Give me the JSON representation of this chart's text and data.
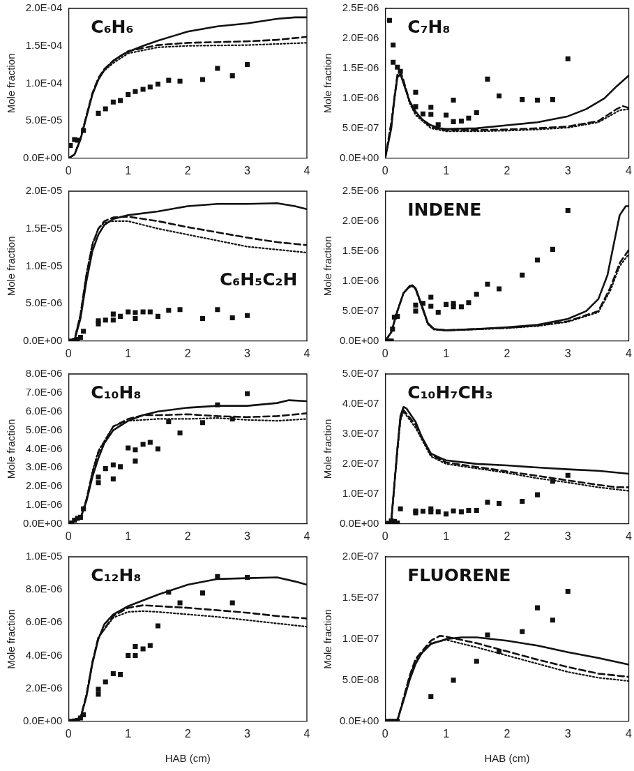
{
  "chart_data": [
    {
      "type": "scatter",
      "title": "C₆H₆",
      "ylabel": "Mole fraction",
      "xlim": [
        0,
        4
      ],
      "xticks": [
        0,
        1,
        2,
        3,
        4
      ],
      "ylim": [
        0,
        0.0002
      ],
      "yticks": [
        {
          "value": 0,
          "label": "0.0E+00"
        },
        {
          "value": 5e-05,
          "label": "5.0E-05"
        },
        {
          "value": 0.0001,
          "label": "1.0E-04"
        },
        {
          "value": 0.00015,
          "label": "1.5E-04"
        },
        {
          "value": 0.0002,
          "label": "2.0E-04"
        }
      ],
      "series": [
        {
          "type": "scatter",
          "marker": "square",
          "color": "#111111",
          "x": [
            0.03,
            0.1,
            0.15,
            0.25,
            0.5,
            0.62,
            0.75,
            0.87,
            1.0,
            1.12,
            1.25,
            1.37,
            1.5,
            1.68,
            1.87,
            2.25,
            2.5,
            2.75,
            3.0
          ],
          "values": [
            1.7e-05,
            2.5e-05,
            2.4e-05,
            3.7e-05,
            6e-05,
            6.6e-05,
            7.5e-05,
            7.7e-05,
            8.5e-05,
            8.9e-05,
            9.2e-05,
            9.5e-05,
            9.9e-05,
            0.000104,
            0.000103,
            0.000105,
            0.00012,
            0.00011,
            0.000125
          ]
        },
        {
          "type": "line",
          "line_style": "solid",
          "color": "#111111",
          "x": [
            0,
            0.1,
            0.2,
            0.3,
            0.4,
            0.5,
            0.6,
            0.75,
            0.9,
            1.0,
            1.25,
            1.5,
            2.0,
            2.5,
            3.0,
            3.5,
            3.8,
            4.0
          ],
          "values": [
            0,
            5e-06,
            2.5e-05,
            5.5e-05,
            8.5e-05,
            0.000105,
            0.000118,
            0.00013,
            0.000138,
            0.000142,
            0.00015,
            0.000157,
            0.000169,
            0.000176,
            0.00018,
            0.000186,
            0.000188,
            0.000188
          ]
        },
        {
          "type": "line",
          "line_style": "dashed",
          "color": "#111111",
          "x": [
            0,
            0.1,
            0.2,
            0.3,
            0.4,
            0.5,
            0.6,
            0.75,
            1.0,
            1.5,
            2.0,
            3.0,
            3.5,
            4.0
          ],
          "values": [
            0,
            5e-06,
            2.6e-05,
            5.7e-05,
            8.7e-05,
            0.000107,
            0.000119,
            0.00013,
            0.000143,
            0.000151,
            0.000154,
            0.000156,
            0.000158,
            0.000162
          ]
        },
        {
          "type": "line",
          "line_style": "dotted",
          "color": "#111111",
          "x": [
            0,
            0.1,
            0.2,
            0.3,
            0.4,
            0.5,
            0.6,
            0.75,
            1.0,
            1.5,
            2.0,
            3.0,
            4.0
          ],
          "values": [
            0,
            5e-06,
            2.6e-05,
            5.7e-05,
            8.6e-05,
            0.000105,
            0.000117,
            0.000127,
            0.00014,
            0.000148,
            0.00015,
            0.000151,
            0.000154
          ]
        }
      ]
    },
    {
      "type": "scatter",
      "title": "C₇H₈",
      "ylabel": "Mole fraction",
      "xlim": [
        0,
        4
      ],
      "xticks": [
        0,
        1,
        2,
        3,
        4
      ],
      "ylim": [
        0,
        2.5e-06
      ],
      "yticks": [
        {
          "value": 0,
          "label": "0.0E+00"
        },
        {
          "value": 5e-07,
          "label": "5.0E-07"
        },
        {
          "value": 1e-06,
          "label": "1.0E-06"
        },
        {
          "value": 1.5e-06,
          "label": "1.5E-06"
        },
        {
          "value": 2e-06,
          "label": "2.0E-06"
        },
        {
          "value": 2.5e-06,
          "label": "2.5E-06"
        }
      ],
      "series": [
        {
          "type": "scatter",
          "marker": "square",
          "color": "#111111",
          "x": [
            0.07,
            0.13,
            0.13,
            0.2,
            0.25,
            0.5,
            0.5,
            0.62,
            0.75,
            0.75,
            0.87,
            1.0,
            1.12,
            1.12,
            1.25,
            1.37,
            1.5,
            1.68,
            1.87,
            2.25,
            2.5,
            2.75,
            3.0
          ],
          "values": [
            2.3e-06,
            1.89e-06,
            1.6e-06,
            1.52e-06,
            1.45e-06,
            1.1e-06,
            8.6e-07,
            7.4e-07,
            8.5e-07,
            7.3e-07,
            5.6e-07,
            7.2e-07,
            9.7e-07,
            6.1e-07,
            6.2e-07,
            6.7e-07,
            7.6e-07,
            1.32e-06,
            1.04e-06,
            9.8e-07,
            9.7e-07,
            9.8e-07,
            1.66e-06
          ]
        },
        {
          "type": "line",
          "line_style": "solid",
          "color": "#111111",
          "x": [
            0,
            0.1,
            0.15,
            0.2,
            0.25,
            0.3,
            0.4,
            0.5,
            0.6,
            0.75,
            0.9,
            1.0,
            1.5,
            2.0,
            2.5,
            3.0,
            3.3,
            3.6,
            3.8,
            4.0
          ],
          "values": [
            0,
            5e-07,
            1e-06,
            1.35e-06,
            1.4e-06,
            1.25e-06,
            9.5e-07,
            7.8e-07,
            6.5e-07,
            5.5e-07,
            5e-07,
            4.9e-07,
            5e-07,
            5.5e-07,
            6e-07,
            7e-07,
            8.2e-07,
            1e-06,
            1.2e-06,
            1.38e-06
          ]
        },
        {
          "type": "line",
          "line_style": "dashed",
          "color": "#111111",
          "x": [
            0,
            0.1,
            0.2,
            0.25,
            0.3,
            0.4,
            0.5,
            0.75,
            1.0,
            1.5,
            2.0,
            2.5,
            3.0,
            3.5,
            3.8,
            3.9,
            4.0
          ],
          "values": [
            0,
            6e-07,
            1.4e-06,
            1.45e-06,
            1.3e-06,
            9.5e-07,
            7.5e-07,
            5.2e-07,
            4.7e-07,
            4.7e-07,
            4.8e-07,
            5e-07,
            5.3e-07,
            6.2e-07,
            8.2e-07,
            8.7e-07,
            8.4e-07
          ]
        },
        {
          "type": "line",
          "line_style": "dotted",
          "color": "#111111",
          "x": [
            0,
            0.1,
            0.2,
            0.25,
            0.3,
            0.4,
            0.5,
            0.75,
            1.0,
            1.5,
            2.0,
            2.5,
            3.0,
            3.5,
            3.85,
            4.0
          ],
          "values": [
            0,
            5.5e-07,
            1.35e-06,
            1.42e-06,
            1.28e-06,
            9.2e-07,
            7.2e-07,
            5e-07,
            4.5e-07,
            4.5e-07,
            4.6e-07,
            4.8e-07,
            5.1e-07,
            6e-07,
            8e-07,
            8.2e-07
          ]
        }
      ]
    },
    {
      "type": "scatter",
      "title": "C₆H₅C₂H",
      "ylabel": "Mole fraction",
      "xlim": [
        0,
        4
      ],
      "xticks": [
        0,
        1,
        2,
        3,
        4
      ],
      "ylim": [
        0,
        2e-05
      ],
      "yticks": [
        {
          "value": 0,
          "label": "0.0E+00"
        },
        {
          "value": 5e-06,
          "label": "5.0E-06"
        },
        {
          "value": 1e-05,
          "label": "1.0E-05"
        },
        {
          "value": 1.5e-05,
          "label": "1.5E-05"
        },
        {
          "value": 2e-05,
          "label": "2.0E-05"
        }
      ],
      "series": [
        {
          "type": "scatter",
          "marker": "square",
          "color": "#111111",
          "x": [
            0.05,
            0.1,
            0.15,
            0.2,
            0.25,
            0.5,
            0.5,
            0.62,
            0.75,
            0.75,
            0.87,
            1.0,
            1.12,
            1.12,
            1.25,
            1.37,
            1.5,
            1.68,
            1.87,
            2.25,
            2.5,
            2.75,
            3.0
          ],
          "values": [
            0,
            1e-07,
            2e-07,
            5e-07,
            1.3e-06,
            2.3e-06,
            2.7e-06,
            2.8e-06,
            3.6e-06,
            2.8e-06,
            3.3e-06,
            3.9e-06,
            3.8e-06,
            3e-06,
            3.9e-06,
            3.9e-06,
            3.3e-06,
            4.1e-06,
            4.2e-06,
            3e-06,
            4.2e-06,
            3.1e-06,
            3.4e-06
          ]
        },
        {
          "type": "line",
          "line_style": "solid",
          "color": "#111111",
          "x": [
            0,
            0.1,
            0.2,
            0.3,
            0.4,
            0.5,
            0.6,
            0.75,
            1.0,
            1.5,
            2.0,
            2.5,
            3.0,
            3.5,
            3.8,
            4.0
          ],
          "values": [
            0,
            1e-07,
            3e-06,
            8e-06,
            1.2e-05,
            1.42e-05,
            1.55e-05,
            1.63e-05,
            1.68e-05,
            1.73e-05,
            1.8e-05,
            1.83e-05,
            1.83e-05,
            1.84e-05,
            1.8e-05,
            1.76e-05
          ]
        },
        {
          "type": "line",
          "line_style": "dashed",
          "color": "#111111",
          "x": [
            0,
            0.1,
            0.2,
            0.3,
            0.4,
            0.5,
            0.6,
            0.75,
            1.0,
            1.5,
            2.0,
            2.5,
            3.0,
            3.5,
            4.0
          ],
          "values": [
            0,
            2e-07,
            3.5e-06,
            8.8e-06,
            1.28e-05,
            1.5e-05,
            1.6e-05,
            1.65e-05,
            1.66e-05,
            1.6e-05,
            1.52e-05,
            1.45e-05,
            1.38e-05,
            1.32e-05,
            1.28e-05
          ]
        },
        {
          "type": "line",
          "line_style": "dotted",
          "color": "#111111",
          "x": [
            0,
            0.1,
            0.2,
            0.3,
            0.4,
            0.5,
            0.6,
            0.75,
            1.0,
            1.5,
            2.0,
            2.5,
            3.0,
            3.5,
            4.0
          ],
          "values": [
            0,
            2e-07,
            3.6e-06,
            9e-06,
            1.3e-05,
            1.5e-05,
            1.58e-05,
            1.6e-05,
            1.6e-05,
            1.5e-05,
            1.42e-05,
            1.34e-05,
            1.26e-05,
            1.22e-05,
            1.18e-05
          ]
        }
      ]
    },
    {
      "type": "scatter",
      "title": "INDENE",
      "ylabel": "Mole fraction",
      "xlim": [
        0,
        4
      ],
      "xticks": [
        0,
        1,
        2,
        3,
        4
      ],
      "ylim": [
        0,
        2.5e-06
      ],
      "yticks": [
        {
          "value": 0,
          "label": "0.0E+00"
        },
        {
          "value": 5e-07,
          "label": "5.0E-07"
        },
        {
          "value": 1e-06,
          "label": "1.0E-06"
        },
        {
          "value": 1.5e-06,
          "label": "1.5E-06"
        },
        {
          "value": 2e-06,
          "label": "2.0E-06"
        },
        {
          "value": 2.5e-06,
          "label": "2.5E-06"
        }
      ],
      "series": [
        {
          "type": "scatter",
          "marker": "square",
          "color": "#111111",
          "x": [
            0.05,
            0.1,
            0.12,
            0.15,
            0.2,
            0.5,
            0.5,
            0.62,
            0.75,
            0.75,
            0.87,
            1.0,
            1.12,
            1.12,
            1.25,
            1.37,
            1.5,
            1.68,
            1.87,
            2.25,
            2.5,
            2.75,
            3.0
          ],
          "values": [
            0,
            0,
            2e-07,
            4e-07,
            4.1e-07,
            5e-07,
            6e-07,
            6.3e-07,
            7.3e-07,
            5.8e-07,
            4.8e-07,
            6.1e-07,
            6.3e-07,
            5.7e-07,
            5.7e-07,
            6.4e-07,
            7.8e-07,
            9.5e-07,
            8.7e-07,
            1.1e-06,
            1.35e-06,
            1.53e-06,
            2.18e-06
          ]
        },
        {
          "type": "line",
          "line_style": "solid",
          "color": "#111111",
          "x": [
            0,
            0.1,
            0.2,
            0.3,
            0.4,
            0.45,
            0.5,
            0.6,
            0.7,
            0.8,
            1.0,
            1.5,
            2.0,
            2.5,
            3.0,
            3.3,
            3.5,
            3.65,
            3.75,
            3.85,
            3.95,
            4.0
          ],
          "values": [
            0,
            1.5e-07,
            5e-07,
            8e-07,
            9.2e-07,
            9.3e-07,
            8.8e-07,
            6e-07,
            3e-07,
            2e-07,
            1.8e-07,
            2e-07,
            2.3e-07,
            2.7e-07,
            3.7e-07,
            5e-07,
            7e-07,
            1.1e-06,
            1.6e-06,
            2.1e-06,
            2.25e-06,
            2.25e-06
          ]
        },
        {
          "type": "line",
          "line_style": "dashed",
          "color": "#111111",
          "x": [
            0,
            0.1,
            0.2,
            0.3,
            0.4,
            0.45,
            0.5,
            0.6,
            0.7,
            0.8,
            1.0,
            1.5,
            2.0,
            2.5,
            3.0,
            3.5,
            3.7,
            3.85,
            4.0
          ],
          "values": [
            0,
            1.5e-07,
            5e-07,
            8e-07,
            9.1e-07,
            9.2e-07,
            8.7e-07,
            5.8e-07,
            2.9e-07,
            2e-07,
            1.8e-07,
            2e-07,
            2.2e-07,
            2.6e-07,
            3.3e-07,
            5e-07,
            9e-07,
            1.3e-06,
            1.52e-06
          ]
        },
        {
          "type": "line",
          "line_style": "dotted",
          "color": "#111111",
          "x": [
            0,
            0.1,
            0.2,
            0.3,
            0.4,
            0.45,
            0.5,
            0.6,
            0.7,
            0.8,
            1.0,
            1.5,
            2.0,
            2.5,
            3.0,
            3.5,
            3.7,
            3.85,
            4.0
          ],
          "values": [
            0,
            1.5e-07,
            5e-07,
            8e-07,
            9e-07,
            9.1e-07,
            8.6e-07,
            5.7e-07,
            2.8e-07,
            1.9e-07,
            1.75e-07,
            1.95e-07,
            2.15e-07,
            2.5e-07,
            3.2e-07,
            4.8e-07,
            8.5e-07,
            1.25e-06,
            1.45e-06
          ]
        }
      ]
    },
    {
      "type": "scatter",
      "title": "C₁₀H₈",
      "ylabel": "Mole fraction",
      "xlim": [
        0,
        4
      ],
      "xticks": [
        0,
        1,
        2,
        3,
        4
      ],
      "ylim": [
        0,
        8e-06
      ],
      "yticks": [
        {
          "value": 0,
          "label": "0.0E+00"
        },
        {
          "value": 1e-06,
          "label": "1.0E-06"
        },
        {
          "value": 2e-06,
          "label": "2.0E-06"
        },
        {
          "value": 3e-06,
          "label": "3.0E-06"
        },
        {
          "value": 4e-06,
          "label": "4.0E-06"
        },
        {
          "value": 5e-06,
          "label": "5.0E-06"
        },
        {
          "value": 6e-06,
          "label": "6.0E-06"
        },
        {
          "value": 7e-06,
          "label": "7.0E-06"
        },
        {
          "value": 8e-06,
          "label": "8.0E-06"
        }
      ],
      "series": [
        {
          "type": "scatter",
          "marker": "square",
          "color": "#111111",
          "x": [
            0.05,
            0.1,
            0.15,
            0.2,
            0.25,
            0.5,
            0.5,
            0.62,
            0.75,
            0.75,
            0.87,
            1.0,
            1.12,
            1.12,
            1.25,
            1.37,
            1.5,
            1.68,
            1.87,
            2.25,
            2.5,
            2.75,
            3.0
          ],
          "values": [
            5e-08,
            2e-07,
            3e-07,
            3.5e-07,
            8e-07,
            2.5e-06,
            2.2e-06,
            2.95e-06,
            3.15e-06,
            2.4e-06,
            3.05e-06,
            4.05e-06,
            3.95e-06,
            3.35e-06,
            4.25e-06,
            4.35e-06,
            4e-06,
            5.45e-06,
            4.85e-06,
            5.4e-06,
            6.35e-06,
            5.6e-06,
            6.95e-06
          ]
        },
        {
          "type": "line",
          "line_style": "solid",
          "color": "#111111",
          "x": [
            0,
            0.2,
            0.3,
            0.4,
            0.5,
            0.6,
            0.75,
            1.0,
            1.25,
            1.5,
            2.0,
            2.5,
            3.0,
            3.5,
            3.7,
            4.0
          ],
          "values": [
            0,
            3e-07,
            1.2e-06,
            2.5e-06,
            3.5e-06,
            4.3e-06,
            5e-06,
            5.5e-06,
            5.8e-06,
            6e-06,
            6.2e-06,
            6.3e-06,
            6.3e-06,
            6.45e-06,
            6.6e-06,
            6.55e-06
          ]
        },
        {
          "type": "line",
          "line_style": "dashed",
          "color": "#111111",
          "x": [
            0,
            0.2,
            0.3,
            0.4,
            0.5,
            0.75,
            1.0,
            1.25,
            1.5,
            2.0,
            2.5,
            3.0,
            3.5,
            4.0
          ],
          "values": [
            0,
            3e-07,
            1.3e-06,
            2.7e-06,
            3.8e-06,
            5.2e-06,
            5.6e-06,
            5.8e-06,
            5.8e-06,
            5.85e-06,
            5.75e-06,
            5.7e-06,
            5.75e-06,
            5.9e-06
          ]
        },
        {
          "type": "line",
          "line_style": "dotted",
          "color": "#111111",
          "x": [
            0,
            0.2,
            0.3,
            0.4,
            0.5,
            0.75,
            1.0,
            1.5,
            2.0,
            2.5,
            3.0,
            3.5,
            4.0
          ],
          "values": [
            0,
            3e-07,
            1.3e-06,
            2.8e-06,
            3.9e-06,
            5.2e-06,
            5.5e-06,
            5.6e-06,
            5.6e-06,
            5.65e-06,
            5.55e-06,
            5.5e-06,
            5.6e-06
          ]
        }
      ]
    },
    {
      "type": "scatter",
      "title": "C₁₀H₇CH₃",
      "ylabel": "Mole fraction",
      "xlim": [
        0,
        4
      ],
      "xticks": [
        0,
        1,
        2,
        3,
        4
      ],
      "ylim": [
        0,
        5e-07
      ],
      "yticks": [
        {
          "value": 0,
          "label": "0.0E+00"
        },
        {
          "value": 1e-07,
          "label": "1.0E-07"
        },
        {
          "value": 2e-07,
          "label": "2.0E-07"
        },
        {
          "value": 3e-07,
          "label": "3.0E-07"
        },
        {
          "value": 4e-07,
          "label": "4.0E-07"
        },
        {
          "value": 5e-07,
          "label": "5.0E-07"
        }
      ],
      "series": [
        {
          "type": "scatter",
          "marker": "square",
          "color": "#111111",
          "x": [
            0.05,
            0.1,
            0.15,
            0.2,
            0.25,
            0.5,
            0.5,
            0.62,
            0.75,
            0.75,
            0.87,
            1.0,
            1.12,
            1.25,
            1.37,
            1.5,
            1.68,
            1.87,
            2.25,
            2.5,
            2.75,
            3.0
          ],
          "values": [
            2e-09,
            1e-08,
            8e-09,
            3e-09,
            5e-08,
            3.7e-08,
            4.3e-08,
            4.2e-08,
            5e-08,
            4e-08,
            4e-08,
            3.3e-08,
            4.3e-08,
            4e-08,
            4.5e-08,
            4.5e-08,
            7.2e-08,
            6.8e-08,
            7.5e-08,
            9.7e-08,
            1.42e-07,
            1.62e-07
          ]
        },
        {
          "type": "line",
          "line_style": "solid",
          "color": "#111111",
          "x": [
            0,
            0.1,
            0.2,
            0.25,
            0.3,
            0.35,
            0.5,
            0.6,
            0.75,
            0.9,
            1.0,
            1.5,
            2.0,
            2.5,
            3.0,
            3.5,
            4.0
          ],
          "values": [
            0,
            1e-08,
            2.5e-07,
            3.6e-07,
            3.9e-07,
            3.85e-07,
            3.4e-07,
            2.9e-07,
            2.35e-07,
            2.2e-07,
            2.12e-07,
            2e-07,
            1.95e-07,
            1.88e-07,
            1.82e-07,
            1.77e-07,
            1.67e-07
          ]
        },
        {
          "type": "line",
          "line_style": "dashed",
          "color": "#111111",
          "x": [
            0,
            0.1,
            0.2,
            0.25,
            0.3,
            0.5,
            0.75,
            1.0,
            1.5,
            2.0,
            2.5,
            3.0,
            3.5,
            3.8,
            4.0
          ],
          "values": [
            0,
            1e-08,
            2.5e-07,
            3.5e-07,
            3.8e-07,
            3.3e-07,
            2.3e-07,
            2.05e-07,
            1.9e-07,
            1.75e-07,
            1.6e-07,
            1.45e-07,
            1.3e-07,
            1.22e-07,
            1.22e-07
          ]
        },
        {
          "type": "line",
          "line_style": "dotted",
          "color": "#111111",
          "x": [
            0,
            0.1,
            0.2,
            0.25,
            0.3,
            0.5,
            0.75,
            1.0,
            1.5,
            2.0,
            2.5,
            3.0,
            3.5,
            4.0
          ],
          "values": [
            0,
            1e-08,
            2.4e-07,
            3.45e-07,
            3.75e-07,
            3.2e-07,
            2.25e-07,
            2e-07,
            1.85e-07,
            1.7e-07,
            1.52e-07,
            1.38e-07,
            1.22e-07,
            1.1e-07
          ]
        }
      ]
    },
    {
      "type": "scatter",
      "title": "C₁₂H₈",
      "xlabel": "HAB (cm)",
      "ylabel": "Mole fraction",
      "xlim": [
        0,
        4
      ],
      "xticks": [
        0,
        1,
        2,
        3,
        4
      ],
      "ylim": [
        0,
        1e-05
      ],
      "yticks": [
        {
          "value": 0,
          "label": "0.0E+00"
        },
        {
          "value": 2e-06,
          "label": "2.0E-06"
        },
        {
          "value": 4e-06,
          "label": "4.0E-06"
        },
        {
          "value": 6e-06,
          "label": "6.0E-06"
        },
        {
          "value": 8e-06,
          "label": "8.0E-06"
        },
        {
          "value": 1e-05,
          "label": "1.0E-05"
        }
      ],
      "series": [
        {
          "type": "scatter",
          "marker": "square",
          "color": "#111111",
          "x": [
            0.05,
            0.1,
            0.15,
            0.2,
            0.25,
            0.5,
            0.5,
            0.62,
            0.75,
            0.87,
            1.0,
            1.12,
            1.12,
            1.25,
            1.37,
            1.5,
            1.68,
            1.87,
            2.25,
            2.5,
            2.75,
            3.0
          ],
          "values": [
            0,
            2e-08,
            5e-08,
            2e-07,
            4e-07,
            1.95e-06,
            1.65e-06,
            2.4e-06,
            2.9e-06,
            2.85e-06,
            4e-06,
            4e-06,
            4.55e-06,
            4.4e-06,
            4.6e-06,
            5.8e-06,
            7.85e-06,
            7.2e-06,
            7.8e-06,
            8.8e-06,
            7.2e-06,
            8.75e-06
          ]
        },
        {
          "type": "line",
          "line_style": "solid",
          "color": "#111111",
          "x": [
            0,
            0.2,
            0.3,
            0.4,
            0.5,
            0.6,
            0.75,
            1.0,
            1.5,
            2.0,
            2.5,
            3.0,
            3.5,
            3.8,
            4.0
          ],
          "values": [
            0,
            2e-07,
            1.5e-06,
            3.5e-06,
            5e-06,
            5.9e-06,
            6.5e-06,
            7e-06,
            7.7e-06,
            8.3e-06,
            8.65e-06,
            8.7e-06,
            8.75e-06,
            8.5e-06,
            8.3e-06
          ]
        },
        {
          "type": "line",
          "line_style": "dashed",
          "color": "#111111",
          "x": [
            0,
            0.2,
            0.3,
            0.4,
            0.5,
            0.75,
            1.0,
            1.25,
            1.5,
            2.0,
            2.5,
            3.0,
            3.5,
            4.0
          ],
          "values": [
            0,
            2e-07,
            1.6e-06,
            3.6e-06,
            5.1e-06,
            6.4e-06,
            6.9e-06,
            7.05e-06,
            7e-06,
            6.9e-06,
            6.75e-06,
            6.6e-06,
            6.4e-06,
            6.25e-06
          ]
        },
        {
          "type": "line",
          "line_style": "dotted",
          "color": "#111111",
          "x": [
            0,
            0.2,
            0.3,
            0.4,
            0.5,
            0.75,
            1.0,
            1.25,
            1.5,
            2.0,
            2.5,
            3.0,
            3.5,
            4.0
          ],
          "values": [
            0,
            2e-07,
            1.6e-06,
            3.6e-06,
            5.1e-06,
            6.3e-06,
            6.65e-06,
            6.7e-06,
            6.65e-06,
            6.5e-06,
            6.35e-06,
            6.15e-06,
            5.95e-06,
            5.75e-06
          ]
        }
      ]
    },
    {
      "type": "scatter",
      "title": "FLUORENE",
      "xlabel": "HAB (cm)",
      "ylabel": "Mole fraction",
      "xlim": [
        0,
        4
      ],
      "xticks": [
        0,
        1,
        2,
        3,
        4
      ],
      "ylim": [
        0,
        2e-07
      ],
      "yticks": [
        {
          "value": 0,
          "label": "0.0E+00"
        },
        {
          "value": 5e-08,
          "label": "5.0E-08"
        },
        {
          "value": 1e-07,
          "label": "1.0E-07"
        },
        {
          "value": 1.5e-07,
          "label": "1.5E-07"
        },
        {
          "value": 2e-07,
          "label": "2.0E-07"
        }
      ],
      "series": [
        {
          "type": "scatter",
          "marker": "square",
          "color": "#111111",
          "x": [
            0.05,
            0.1,
            0.15,
            0.2,
            0.75,
            1.12,
            1.5,
            1.68,
            1.87,
            2.25,
            2.5,
            2.75,
            3.0
          ],
          "values": [
            0,
            0,
            0,
            0,
            3e-08,
            5e-08,
            7.3e-08,
            1.05e-07,
            8.5e-08,
            1.09e-07,
            1.38e-07,
            1.23e-07,
            1.58e-07
          ]
        },
        {
          "type": "line",
          "line_style": "solid",
          "color": "#111111",
          "x": [
            0,
            0.2,
            0.3,
            0.4,
            0.5,
            0.6,
            0.75,
            1.0,
            1.25,
            1.5,
            2.0,
            2.5,
            3.0,
            3.5,
            4.0
          ],
          "values": [
            0,
            1e-09,
            2.5e-08,
            5e-08,
            7e-08,
            8.3e-08,
            9.4e-08,
            1e-07,
            1.02e-07,
            1.02e-07,
            9.8e-08,
            9.2e-08,
            8.4e-08,
            7.7e-08,
            6.9e-08
          ]
        },
        {
          "type": "line",
          "line_style": "dashed",
          "color": "#111111",
          "x": [
            0,
            0.2,
            0.3,
            0.4,
            0.5,
            0.75,
            0.9,
            1.0,
            1.5,
            2.0,
            2.5,
            3.0,
            3.5,
            4.0
          ],
          "values": [
            0,
            1e-09,
            2.8e-08,
            5.5e-08,
            7.6e-08,
            9.8e-08,
            1.04e-07,
            1.03e-07,
            9.5e-08,
            8.5e-08,
            7.5e-08,
            6.6e-08,
            5.8e-08,
            5.4e-08
          ]
        },
        {
          "type": "line",
          "line_style": "dotted",
          "color": "#111111",
          "x": [
            0,
            0.2,
            0.3,
            0.4,
            0.5,
            0.75,
            1.0,
            1.5,
            2.0,
            2.5,
            3.0,
            3.5,
            4.0
          ],
          "values": [
            0,
            1e-09,
            2.7e-08,
            5.4e-08,
            7.4e-08,
            9.5e-08,
            9.9e-08,
            9e-08,
            8e-08,
            7e-08,
            6e-08,
            5.3e-08,
            4.9e-08
          ]
        }
      ]
    }
  ]
}
